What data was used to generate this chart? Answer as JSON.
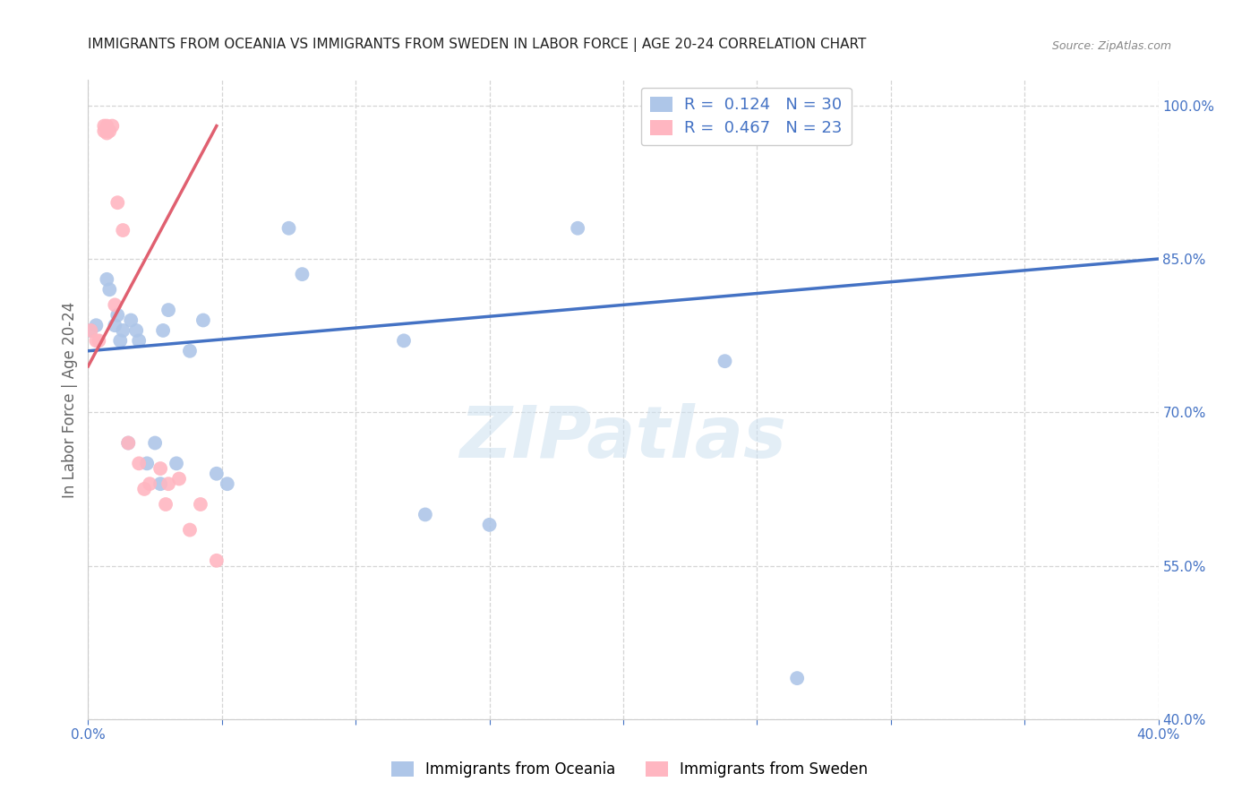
{
  "title": "IMMIGRANTS FROM OCEANIA VS IMMIGRANTS FROM SWEDEN IN LABOR FORCE | AGE 20-24 CORRELATION CHART",
  "source": "Source: ZipAtlas.com",
  "ylabel": "In Labor Force | Age 20-24",
  "watermark": "ZIPatlas",
  "xlim": [
    0.0,
    0.4
  ],
  "ylim": [
    0.4,
    1.025
  ],
  "xtick_positions": [
    0.0,
    0.05,
    0.1,
    0.15,
    0.2,
    0.25,
    0.3,
    0.35,
    0.4
  ],
  "xtick_labels": [
    "0.0%",
    "",
    "",
    "",
    "",
    "",
    "",
    "",
    "40.0%"
  ],
  "ytick_positions": [
    0.4,
    0.55,
    0.7,
    0.85,
    1.0
  ],
  "ytick_labels_right": [
    "40.0%",
    "55.0%",
    "70.0%",
    "85.0%",
    "100.0%"
  ],
  "legend1_label": "R =  0.124   N = 30",
  "legend2_label": "R =  0.467   N = 23",
  "legend1_color": "#aec6e8",
  "legend2_color": "#ffb6c1",
  "trendline1_color": "#4472c4",
  "trendline2_color": "#e06070",
  "oceania_x": [
    0.001,
    0.003,
    0.007,
    0.008,
    0.01,
    0.011,
    0.012,
    0.013,
    0.015,
    0.016,
    0.018,
    0.019,
    0.022,
    0.025,
    0.027,
    0.028,
    0.03,
    0.033,
    0.038,
    0.043,
    0.048,
    0.052,
    0.075,
    0.08,
    0.118,
    0.126,
    0.15,
    0.183,
    0.238,
    0.265
  ],
  "oceania_y": [
    0.78,
    0.785,
    0.83,
    0.82,
    0.785,
    0.795,
    0.77,
    0.78,
    0.67,
    0.79,
    0.78,
    0.77,
    0.65,
    0.67,
    0.63,
    0.78,
    0.8,
    0.65,
    0.76,
    0.79,
    0.64,
    0.63,
    0.88,
    0.835,
    0.77,
    0.6,
    0.59,
    0.88,
    0.75,
    0.44
  ],
  "sweden_x": [
    0.001,
    0.003,
    0.004,
    0.006,
    0.006,
    0.007,
    0.007,
    0.008,
    0.009,
    0.01,
    0.011,
    0.013,
    0.015,
    0.019,
    0.021,
    0.023,
    0.027,
    0.029,
    0.03,
    0.034,
    0.038,
    0.042,
    0.048
  ],
  "sweden_y": [
    0.78,
    0.77,
    0.77,
    0.98,
    0.975,
    0.973,
    0.98,
    0.975,
    0.98,
    0.805,
    0.905,
    0.878,
    0.67,
    0.65,
    0.625,
    0.63,
    0.645,
    0.61,
    0.63,
    0.635,
    0.585,
    0.61,
    0.555
  ],
  "oceania_trendline_x": [
    0.0,
    0.4
  ],
  "oceania_trendline_y": [
    0.76,
    0.85
  ],
  "sweden_trendline_x": [
    0.0,
    0.048
  ],
  "sweden_trendline_y": [
    0.745,
    0.98
  ],
  "bg_color": "#ffffff",
  "grid_color": "#d5d5d5",
  "axis_label_color": "#4472c4",
  "title_color": "#222222"
}
